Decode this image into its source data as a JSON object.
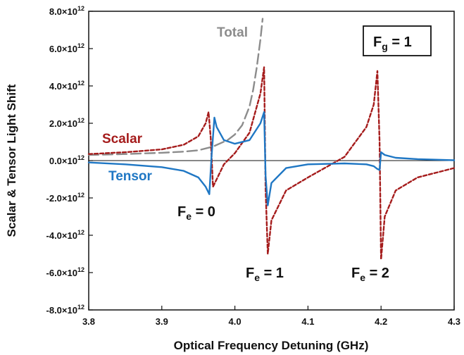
{
  "chart_data": {
    "type": "line",
    "title": "",
    "xlabel": "Optical Frequency Detuning (GHz)",
    "ylabel": "Scalar & Tensor Light Shift",
    "xlim": [
      3.8,
      4.3
    ],
    "ylim": [
      -8000000000000.0,
      8000000000000.0
    ],
    "x_ticks": [
      "3.8",
      "3.9",
      "4.0",
      "4.1",
      "4.2",
      "4.3"
    ],
    "y_ticks": [
      {
        "mant": "-8.0",
        "exp": "12",
        "value": -8000000000000.0
      },
      {
        "mant": "-6.0",
        "exp": "12",
        "value": -6000000000000.0
      },
      {
        "mant": "-4.0",
        "exp": "12",
        "value": -4000000000000.0
      },
      {
        "mant": "-2.0",
        "exp": "12",
        "value": -2000000000000.0
      },
      {
        "mant": "0.0",
        "exp": "12",
        "value": 0
      },
      {
        "mant": "2.0",
        "exp": "12",
        "value": 2000000000000.0
      },
      {
        "mant": "4.0",
        "exp": "12",
        "value": 4000000000000.0
      },
      {
        "mant": "6.0",
        "exp": "12",
        "value": 6000000000000.0
      },
      {
        "mant": "8.0",
        "exp": "12",
        "value": 8000000000000.0
      }
    ],
    "grid": false,
    "legend": "none",
    "times_sign": "×10",
    "series": [
      {
        "name": "Total",
        "color": "#8c8c8c",
        "style": "long-dash",
        "x": [
          3.8,
          3.85,
          3.9,
          3.93,
          3.95,
          3.97,
          3.99,
          4.0,
          4.01,
          4.02,
          4.025,
          4.03,
          4.035,
          4.038
        ],
        "y": [
          300000000000.0,
          350000000000.0,
          420000000000.0,
          480000000000.0,
          550000000000.0,
          750000000000.0,
          1100000000000.0,
          1400000000000.0,
          1900000000000.0,
          2900000000000.0,
          3800000000000.0,
          5000000000000.0,
          6500000000000.0,
          7600000000000.0
        ]
      },
      {
        "name": "Scalar",
        "color": "#a51c1c",
        "style": "short-dash",
        "x": [
          3.8,
          3.85,
          3.9,
          3.93,
          3.95,
          3.96,
          3.964,
          3.967,
          3.97,
          3.975,
          3.985,
          4.0,
          4.02,
          4.035,
          4.04,
          4.042,
          4.045,
          4.05,
          4.07,
          4.1,
          4.15,
          4.18,
          4.19,
          4.195,
          4.198,
          4.2,
          4.205,
          4.22,
          4.25,
          4.3
        ],
        "y": [
          350000000000.0,
          450000000000.0,
          600000000000.0,
          850000000000.0,
          1300000000000.0,
          2000000000000.0,
          2600000000000.0,
          1200000000000.0,
          -1400000000000.0,
          -1000000000000.0,
          -200000000000.0,
          400000000000.0,
          1500000000000.0,
          3600000000000.0,
          5000000000000.0,
          -1500000000000.0,
          -5000000000000.0,
          -3200000000000.0,
          -1600000000000.0,
          -900000000000.0,
          200000000000.0,
          1800000000000.0,
          3000000000000.0,
          4800000000000.0,
          1000000000000.0,
          -5300000000000.0,
          -3000000000000.0,
          -1600000000000.0,
          -900000000000.0,
          -400000000000.0
        ]
      },
      {
        "name": "Tensor",
        "color": "#1f77c4",
        "style": "solid",
        "x": [
          3.8,
          3.85,
          3.9,
          3.93,
          3.95,
          3.96,
          3.965,
          3.968,
          3.972,
          3.975,
          3.985,
          4.0,
          4.02,
          4.035,
          4.04,
          4.042,
          4.045,
          4.05,
          4.07,
          4.1,
          4.15,
          4.18,
          4.19,
          4.195,
          4.198,
          4.2,
          4.205,
          4.22,
          4.25,
          4.3
        ],
        "y": [
          -100000000000.0,
          -200000000000.0,
          -350000000000.0,
          -550000000000.0,
          -900000000000.0,
          -1400000000000.0,
          -1800000000000.0,
          200000000000.0,
          2300000000000.0,
          1800000000000.0,
          1100000000000.0,
          900000000000.0,
          1100000000000.0,
          2000000000000.0,
          2600000000000.0,
          -800000000000.0,
          -2400000000000.0,
          -1200000000000.0,
          -400000000000.0,
          -200000000000.0,
          -150000000000.0,
          -200000000000.0,
          -300000000000.0,
          -450000000000.0,
          -500000000000.0,
          450000000000.0,
          300000000000.0,
          150000000000.0,
          80000000000.0,
          20000000000.0
        ]
      }
    ],
    "annotations": {
      "total": {
        "text": "Total",
        "color": "#8c8c8c"
      },
      "scalar": {
        "text": "Scalar",
        "color": "#a51c1c"
      },
      "tensor": {
        "text": "Tensor",
        "color": "#1f77c4"
      },
      "fe0": {
        "base": "F",
        "sub": "e",
        "rest": " = 0"
      },
      "fe1": {
        "base": "F",
        "sub": "e",
        "rest": " = 1"
      },
      "fe2": {
        "base": "F",
        "sub": "e",
        "rest": " = 2"
      },
      "fg": {
        "base": "F",
        "sub": "g",
        "rest": " = 1"
      }
    }
  }
}
